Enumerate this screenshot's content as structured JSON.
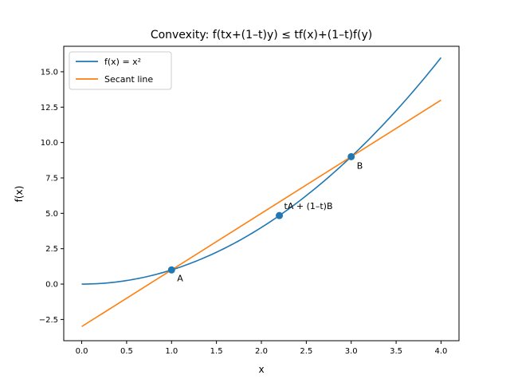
{
  "chart_data": {
    "type": "line",
    "title": "Convexity: f(tx+(1–t)y) ≤ tf(x)+(1–t)f(y)",
    "xlabel": "x",
    "ylabel": "f(x)",
    "xlim": [
      -0.2,
      4.2
    ],
    "ylim": [
      -4.0,
      16.8
    ],
    "xticks": [
      0.0,
      0.5,
      1.0,
      1.5,
      2.0,
      2.5,
      3.0,
      3.5,
      4.0
    ],
    "xtick_labels": [
      "0.0",
      "0.5",
      "1.0",
      "1.5",
      "2.0",
      "2.5",
      "3.0",
      "3.5",
      "4.0"
    ],
    "yticks": [
      -2.5,
      0.0,
      2.5,
      5.0,
      7.5,
      10.0,
      12.5,
      15.0
    ],
    "ytick_labels": [
      "−2.5",
      "0.0",
      "2.5",
      "5.0",
      "7.5",
      "10.0",
      "12.5",
      "15.0"
    ],
    "grid": false,
    "legend_position": "top-left",
    "series": [
      {
        "name": "f(x) = x²",
        "color": "#1f77b4",
        "function": "x^2",
        "x_range": [
          0,
          4
        ]
      },
      {
        "name": "Secant line",
        "color": "#ff7f0e",
        "x": [
          0,
          4
        ],
        "y": [
          -3,
          13
        ]
      }
    ],
    "points": [
      {
        "label": "A",
        "x": 1.0,
        "y": 1.0
      },
      {
        "label": "B",
        "x": 3.0,
        "y": 9.0
      },
      {
        "label": "tA + (1–t)B",
        "x": 2.2,
        "y": 4.84
      }
    ],
    "point_color": "#1f77b4"
  }
}
